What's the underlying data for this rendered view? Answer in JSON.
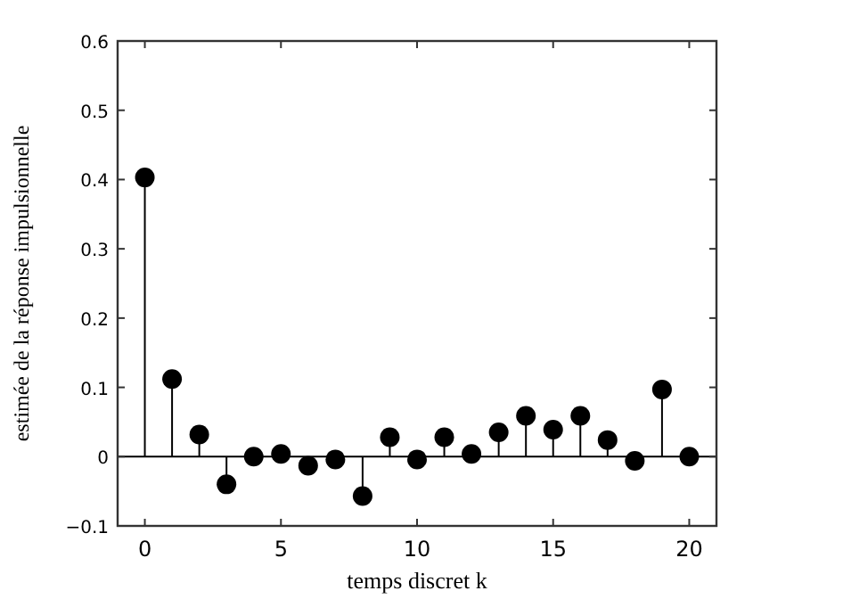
{
  "chart_data": {
    "type": "lollipop",
    "xlabel": "temps discret k",
    "ylabel": "estimée de la réponse impulsionnelle",
    "x": [
      0,
      1,
      2,
      3,
      4,
      5,
      6,
      7,
      8,
      9,
      10,
      11,
      12,
      13,
      14,
      15,
      16,
      17,
      18,
      19,
      20
    ],
    "values": [
      0.403,
      0.112,
      0.032,
      -0.04,
      0,
      0.004,
      -0.013,
      -0.004,
      -0.057,
      0.028,
      -0.004,
      0.028,
      0.004,
      0.035,
      0.059,
      0.039,
      0.059,
      0.024,
      -0.006,
      0.097,
      0
    ],
    "color": "#000000",
    "marker": "circle",
    "xlim": [
      -1,
      21
    ],
    "xticks": [
      0,
      5,
      10,
      15,
      20
    ],
    "ylim": [
      -0.1,
      0.6
    ],
    "yticks": [
      {
        "value": -0.1,
        "label": "−0.1"
      },
      0,
      0.1,
      0.2,
      0.3,
      0.4,
      0.5,
      0.6
    ],
    "ref_lines": [
      {
        "axis": "y",
        "value": 0,
        "label": null
      }
    ],
    "grid": false
  }
}
